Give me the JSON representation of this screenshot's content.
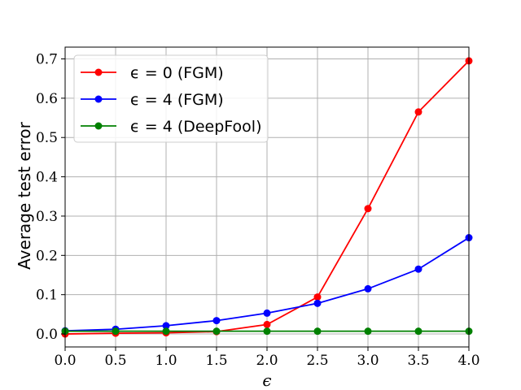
{
  "chart_data": {
    "type": "line",
    "title": "",
    "xlabel": "ϵ",
    "ylabel": "Average test error",
    "xlim": [
      0.0,
      4.0
    ],
    "ylim": [
      -0.033,
      0.73
    ],
    "xticks": [
      "0.0",
      "0.5",
      "1.0",
      "1.5",
      "2.0",
      "2.5",
      "3.0",
      "3.5",
      "4.0"
    ],
    "yticks": [
      "0.0",
      "0.1",
      "0.2",
      "0.3",
      "0.4",
      "0.5",
      "0.6",
      "0.7"
    ],
    "grid": true,
    "legend_position": "top-left",
    "x": [
      0.0,
      0.5,
      1.0,
      1.5,
      2.0,
      2.5,
      3.0,
      3.5,
      4.0
    ],
    "series": [
      {
        "name": "ϵ = 0 (FGM)",
        "color": "#ff0000",
        "values": [
          0.0,
          0.002,
          0.003,
          0.006,
          0.024,
          0.094,
          0.319,
          0.565,
          0.695
        ]
      },
      {
        "name": "ϵ = 4 (FGM)",
        "color": "#0000ff",
        "values": [
          0.008,
          0.012,
          0.021,
          0.034,
          0.053,
          0.078,
          0.115,
          0.165,
          0.245
        ]
      },
      {
        "name": "ϵ = 4 (DeepFool)",
        "color": "#008000",
        "values": [
          0.007,
          0.007,
          0.007,
          0.007,
          0.007,
          0.007,
          0.007,
          0.007,
          0.007
        ]
      }
    ]
  }
}
